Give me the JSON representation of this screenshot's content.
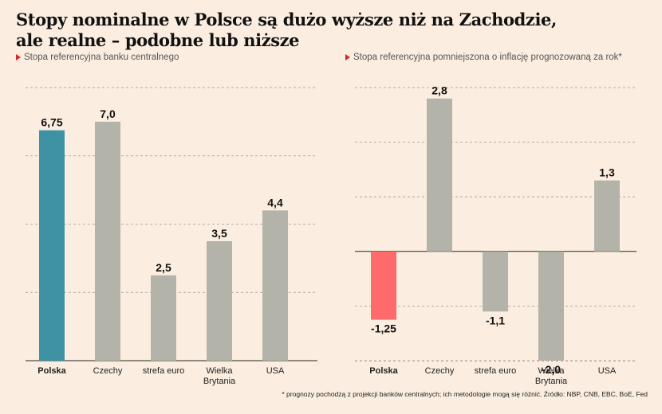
{
  "title_line1": "Stopy nominalne w Polsce są dużo wyższe niż na Zachodzie,",
  "title_line2": "ale realne – podobne lub niższe",
  "footnote": "* prognozy pochodzą z projekcji banków centralnych; ich metodologie mogą się różnić. Źródło: NBP, CNB, EBC, BoE, Fed",
  "colors": {
    "highlight_left": "#3f92a4",
    "highlight_right": "#ff6b6b",
    "bar": "#b4b3aa",
    "grid": "#999999",
    "marker": "#d62728"
  },
  "chart_data": [
    {
      "type": "bar",
      "subtitle": "Stopa referencyjna banku centralnego",
      "categories": [
        "Polska",
        "Czechy",
        "strefa euro",
        "Wielka Brytania",
        "USA"
      ],
      "category_labels": [
        [
          "Polska"
        ],
        [
          "Czechy"
        ],
        [
          "strefa euro"
        ],
        [
          "Wielka",
          "Brytania"
        ],
        [
          "USA"
        ]
      ],
      "values": [
        6.75,
        7.0,
        2.5,
        3.5,
        4.4
      ],
      "value_labels": [
        "6,75",
        "7,0",
        "2,5",
        "3,5",
        "4,4"
      ],
      "highlight_index": 0,
      "ylim": [
        0,
        8
      ],
      "gridlines": [
        2,
        4,
        6,
        8
      ],
      "grid": true
    },
    {
      "type": "bar",
      "subtitle": "Stopa referencyjna pomniejszona o inflację prognozowaną za rok*",
      "categories": [
        "Polska",
        "Czechy",
        "strefa euro",
        "Wielka Brytania",
        "USA"
      ],
      "category_labels": [
        [
          "Polska"
        ],
        [
          "Czechy"
        ],
        [
          "strefa euro"
        ],
        [
          "Wielka",
          "Brytania"
        ],
        [
          "USA"
        ]
      ],
      "values": [
        -1.25,
        2.8,
        -1.1,
        -2.0,
        1.3
      ],
      "value_labels": [
        "-1,25",
        "2,8",
        "-1,1",
        "-2,0",
        "1,3"
      ],
      "highlight_index": 0,
      "ylim": [
        -2.0,
        3.0
      ],
      "gridlines": [
        -2,
        -1,
        1,
        2,
        3
      ],
      "zero_line": true,
      "grid": true
    }
  ]
}
